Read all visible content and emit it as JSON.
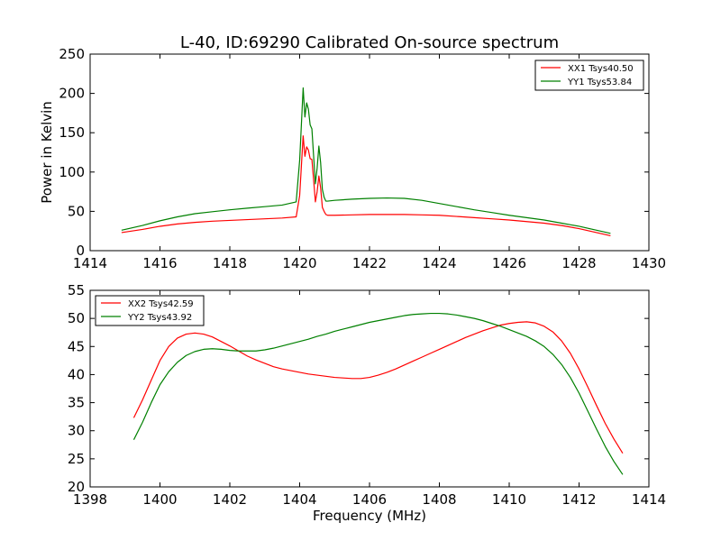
{
  "figure": {
    "title": "L-40, ID:69290 Calibrated On-source spectrum",
    "ylabel": "Power in Kelvin",
    "xlabel": "Frequency (MHz)"
  },
  "chart_data": [
    {
      "type": "line",
      "title": "L-40, ID:69290 Calibrated On-source spectrum",
      "xlabel": "",
      "ylabel": "Power in Kelvin",
      "xlim": [
        1414,
        1430
      ],
      "ylim": [
        0,
        250
      ],
      "xticks": [
        1414,
        1416,
        1418,
        1420,
        1422,
        1424,
        1426,
        1428,
        1430
      ],
      "yticks": [
        0,
        50,
        100,
        150,
        200,
        250
      ],
      "grid": false,
      "legend": "top-right",
      "series": [
        {
          "name": "XX1 Tsys40.50",
          "color": "#ff0000",
          "x": [
            1414.9,
            1415.5,
            1416.0,
            1416.5,
            1417.0,
            1417.5,
            1418.0,
            1418.5,
            1419.0,
            1419.5,
            1419.9,
            1420.0,
            1420.1,
            1420.15,
            1420.2,
            1420.25,
            1420.3,
            1420.35,
            1420.4,
            1420.45,
            1420.5,
            1420.55,
            1420.6,
            1420.65,
            1420.7,
            1420.75,
            1420.8,
            1421.0,
            1421.5,
            1422.0,
            1422.5,
            1423.0,
            1423.5,
            1424.0,
            1424.5,
            1425.0,
            1425.5,
            1426.0,
            1426.5,
            1427.0,
            1427.5,
            1428.0,
            1428.5,
            1428.9
          ],
          "y": [
            23,
            27,
            31,
            34,
            36,
            37.5,
            38.5,
            39.5,
            40.5,
            41.5,
            43,
            70,
            146,
            120,
            132,
            128,
            117,
            116,
            90,
            62,
            75,
            95,
            80,
            55,
            50,
            46,
            45,
            45,
            45.5,
            46,
            46,
            46,
            45.5,
            45,
            43.5,
            42,
            40.5,
            39,
            37,
            35,
            32,
            28,
            23,
            19
          ]
        },
        {
          "name": "YY1 Tsys53.84",
          "color": "#008000",
          "x": [
            1414.9,
            1415.5,
            1416.0,
            1416.5,
            1417.0,
            1417.5,
            1418.0,
            1418.5,
            1419.0,
            1419.5,
            1419.9,
            1420.0,
            1420.1,
            1420.15,
            1420.2,
            1420.25,
            1420.3,
            1420.35,
            1420.4,
            1420.45,
            1420.5,
            1420.55,
            1420.6,
            1420.65,
            1420.7,
            1420.75,
            1420.8,
            1421.0,
            1421.5,
            1422.0,
            1422.5,
            1423.0,
            1423.5,
            1424.0,
            1424.5,
            1425.0,
            1425.5,
            1426.0,
            1426.5,
            1427.0,
            1427.5,
            1428.0,
            1428.5,
            1428.9
          ],
          "y": [
            26,
            32,
            38,
            43,
            47,
            49.5,
            52,
            54,
            56,
            58,
            62,
            115,
            207,
            170,
            188,
            180,
            160,
            155,
            120,
            85,
            105,
            133,
            112,
            78,
            68,
            63,
            63,
            64,
            65.5,
            66.5,
            67,
            66.5,
            64,
            60,
            56,
            52,
            48.5,
            45,
            42,
            39,
            35,
            31,
            26,
            22
          ]
        }
      ]
    },
    {
      "type": "line",
      "title": "",
      "xlabel": "Frequency (MHz)",
      "ylabel": "",
      "xlim": [
        1398,
        1414
      ],
      "ylim": [
        20,
        55
      ],
      "xticks": [
        1398,
        1400,
        1402,
        1404,
        1406,
        1408,
        1410,
        1412,
        1414
      ],
      "yticks": [
        20,
        25,
        30,
        35,
        40,
        45,
        50,
        55
      ],
      "grid": false,
      "legend": "top-left",
      "series": [
        {
          "name": "XX2 Tsys42.59",
          "color": "#ff0000",
          "x": [
            1399.25,
            1399.5,
            1399.75,
            1400.0,
            1400.25,
            1400.5,
            1400.75,
            1401.0,
            1401.25,
            1401.5,
            1401.75,
            1402.0,
            1402.25,
            1402.5,
            1402.75,
            1403.0,
            1403.25,
            1403.5,
            1403.75,
            1404.0,
            1404.25,
            1404.5,
            1404.75,
            1405.0,
            1405.25,
            1405.5,
            1405.75,
            1406.0,
            1406.25,
            1406.5,
            1406.75,
            1407.0,
            1407.25,
            1407.5,
            1407.75,
            1408.0,
            1408.25,
            1408.5,
            1408.75,
            1409.0,
            1409.25,
            1409.5,
            1409.75,
            1410.0,
            1410.25,
            1410.5,
            1410.75,
            1411.0,
            1411.25,
            1411.5,
            1411.75,
            1412.0,
            1412.25,
            1412.5,
            1412.75,
            1413.0,
            1413.25
          ],
          "y": [
            32.3,
            35.5,
            39.0,
            42.5,
            45.0,
            46.5,
            47.2,
            47.4,
            47.2,
            46.7,
            45.9,
            45.1,
            44.2,
            43.3,
            42.6,
            42.0,
            41.4,
            41.0,
            40.7,
            40.4,
            40.1,
            39.9,
            39.7,
            39.5,
            39.4,
            39.3,
            39.3,
            39.5,
            39.9,
            40.4,
            41.0,
            41.7,
            42.4,
            43.1,
            43.8,
            44.5,
            45.2,
            45.9,
            46.6,
            47.2,
            47.8,
            48.3,
            48.8,
            49.1,
            49.3,
            49.4,
            49.2,
            48.6,
            47.6,
            46.0,
            43.8,
            41.0,
            37.8,
            34.5,
            31.3,
            28.5,
            26.0
          ]
        },
        {
          "name": "YY2 Tsys43.92",
          "color": "#008000",
          "x": [
            1399.25,
            1399.5,
            1399.75,
            1400.0,
            1400.25,
            1400.5,
            1400.75,
            1401.0,
            1401.25,
            1401.5,
            1401.75,
            1402.0,
            1402.25,
            1402.5,
            1402.75,
            1403.0,
            1403.25,
            1403.5,
            1403.75,
            1404.0,
            1404.25,
            1404.5,
            1404.75,
            1405.0,
            1405.25,
            1405.5,
            1405.75,
            1406.0,
            1406.25,
            1406.5,
            1406.75,
            1407.0,
            1407.25,
            1407.5,
            1407.75,
            1408.0,
            1408.25,
            1408.5,
            1408.75,
            1409.0,
            1409.25,
            1409.5,
            1409.75,
            1410.0,
            1410.25,
            1410.5,
            1410.75,
            1411.0,
            1411.25,
            1411.5,
            1411.75,
            1412.0,
            1412.25,
            1412.5,
            1412.75,
            1413.0,
            1413.25
          ],
          "y": [
            28.4,
            31.5,
            35.0,
            38.2,
            40.5,
            42.2,
            43.4,
            44.1,
            44.5,
            44.6,
            44.5,
            44.3,
            44.2,
            44.2,
            44.2,
            44.4,
            44.7,
            45.1,
            45.5,
            45.9,
            46.3,
            46.8,
            47.2,
            47.7,
            48.1,
            48.5,
            48.9,
            49.3,
            49.6,
            49.9,
            50.2,
            50.5,
            50.7,
            50.8,
            50.9,
            50.9,
            50.8,
            50.6,
            50.3,
            50.0,
            49.6,
            49.1,
            48.6,
            48.0,
            47.4,
            46.8,
            46.0,
            45.0,
            43.6,
            41.8,
            39.5,
            36.7,
            33.5,
            30.3,
            27.2,
            24.5,
            22.2
          ]
        }
      ]
    }
  ]
}
